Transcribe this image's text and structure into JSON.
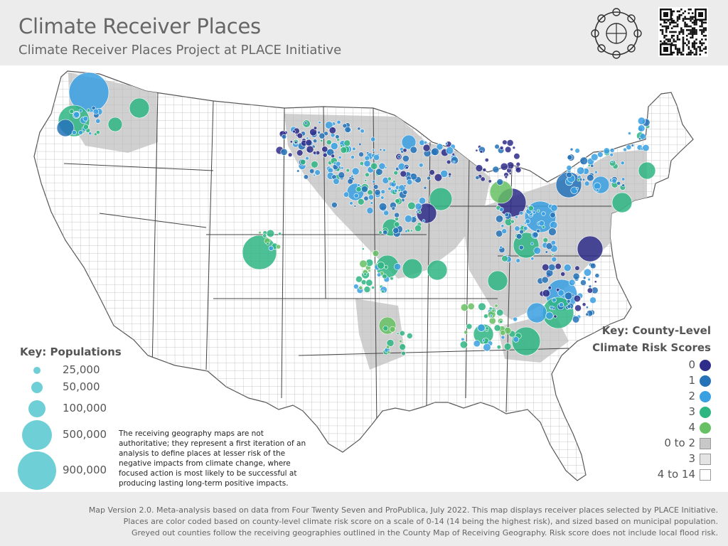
{
  "header": {
    "title": "Climate Receiver Places",
    "subtitle": "Climate Receiver Places Project at PLACE Initiative"
  },
  "population_key": {
    "heading": "Key: Populations",
    "items": [
      {
        "label": "25,000",
        "population": 25000
      },
      {
        "label": "50,000",
        "population": 50000
      },
      {
        "label": "100,000",
        "population": 100000
      },
      {
        "label": "500,000",
        "population": 500000
      },
      {
        "label": "900,000",
        "population": 900000
      }
    ],
    "color": "#6fcfd6"
  },
  "note": "The receiving geography maps are not authoritative; they represent a first iteration of an analysis to define places at lesser risk of the negative impacts from climate change, where focused action is most likely to be successful at producing lasting long-term positive impacts.",
  "risk_key": {
    "heading_line1": "Key: County-Level",
    "heading_line2": "Climate Risk Scores",
    "places": [
      {
        "label": "0",
        "color": "#2e2d8a"
      },
      {
        "label": "1",
        "color": "#2472b8"
      },
      {
        "label": "2",
        "color": "#3aa0e2"
      },
      {
        "label": "3",
        "color": "#2fb582"
      },
      {
        "label": "4",
        "color": "#66c164"
      }
    ],
    "counties": [
      {
        "label": "0 to 2",
        "color": "#c8c8c8"
      },
      {
        "label": "3",
        "color": "#e3e3e3"
      },
      {
        "label": "4 to 14",
        "color": "#ffffff"
      }
    ]
  },
  "footer": {
    "line1": "Map Version 2.0. Meta-analysis based on data from Four Twenty Seven and ProPublica, July 2022. This map displays receiver places selected by PLACE Initiative.",
    "line2": "Places are color coded based on county-level climate risk score on a scale of 0-14 (14 being the highest risk), and sized based on municipal population.",
    "line3": "Greyed out counties follow the receiving geographies outlined in the County Map of Receiving Geography. Risk score does not include local flood risk."
  }
}
